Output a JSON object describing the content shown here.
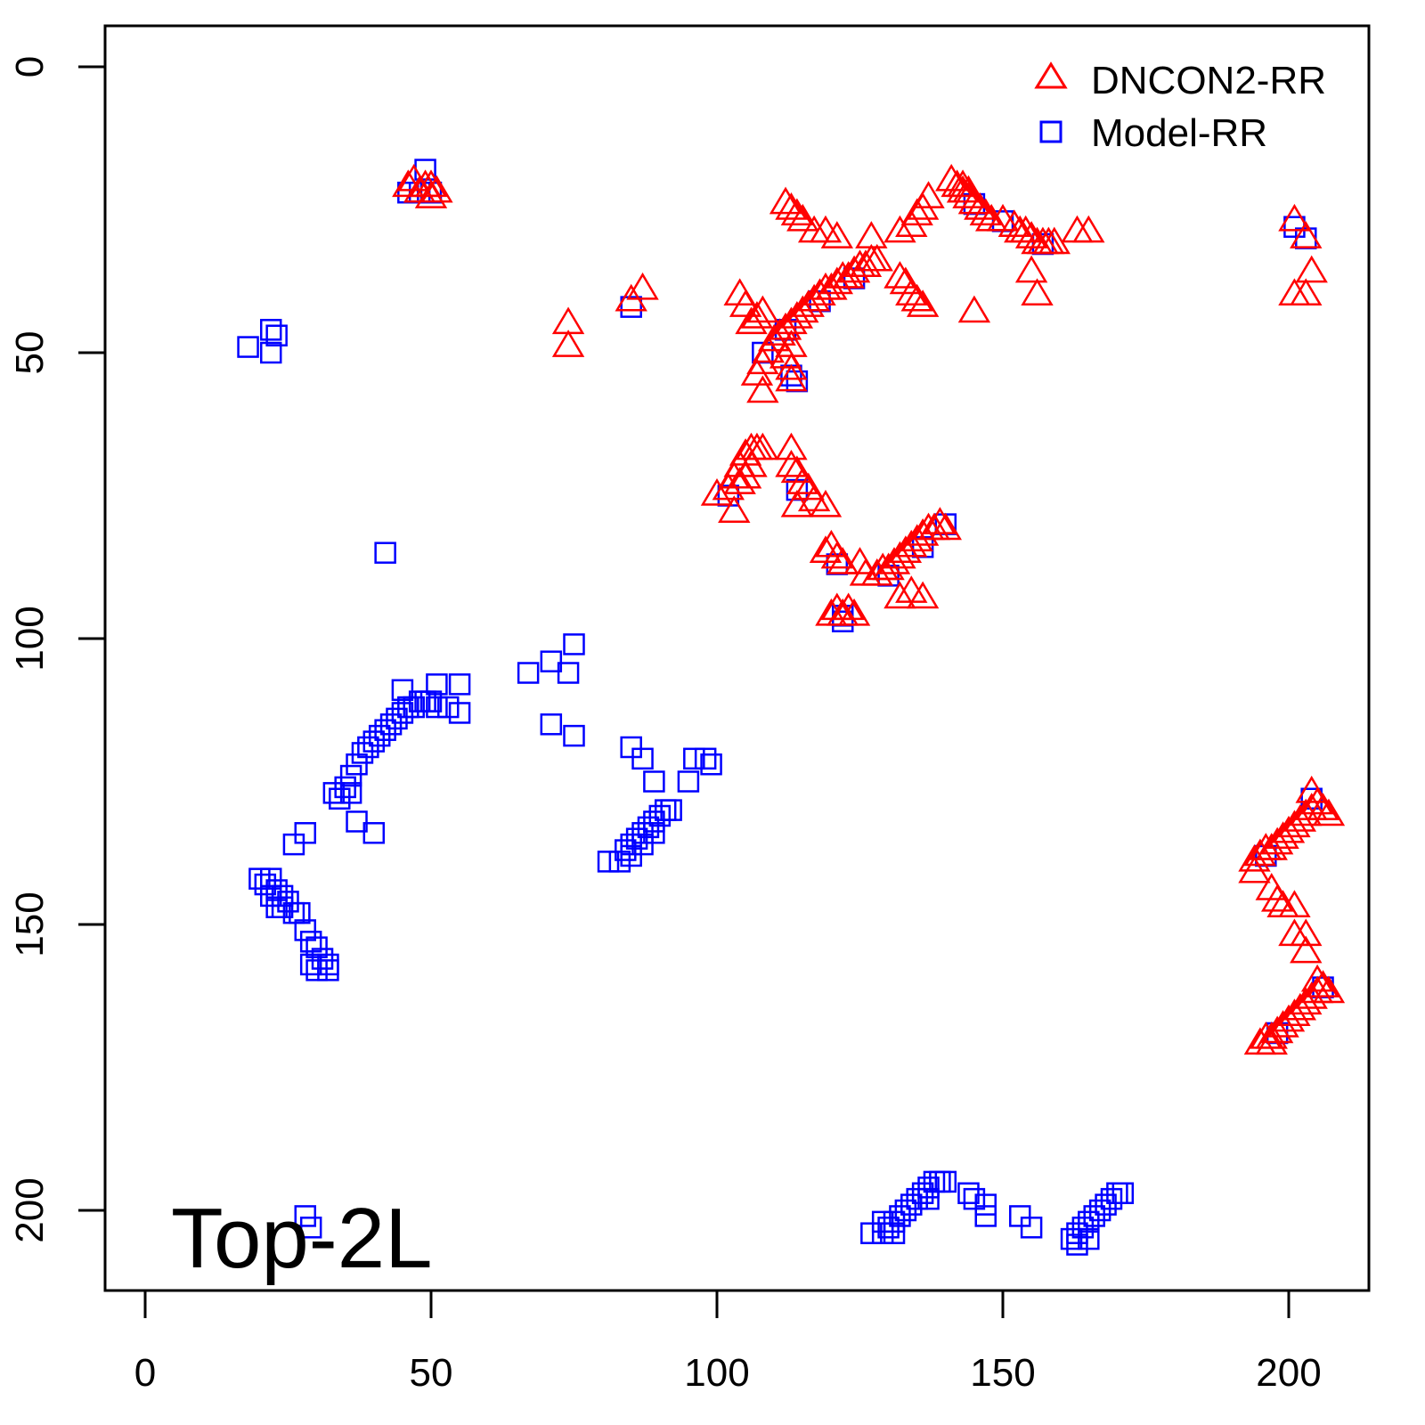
{
  "chart_data": {
    "type": "scatter",
    "title": "",
    "annotation": "Top-2L",
    "xlabel": "",
    "ylabel": "",
    "xlim": [
      -7,
      214
    ],
    "ylim": [
      214,
      -7
    ],
    "y_inverted": true,
    "xticks": [
      0,
      50,
      100,
      150,
      200
    ],
    "yticks": [
      0,
      50,
      100,
      150,
      200
    ],
    "xtick_labels": [
      "0",
      "50",
      "100",
      "150",
      "200"
    ],
    "ytick_labels": [
      "0",
      "50",
      "100",
      "150",
      "200"
    ],
    "grid": false,
    "legend": {
      "placement": "top-right",
      "entries": [
        "DNCON2-RR",
        "Model-RR"
      ]
    },
    "series": [
      {
        "name": "Model-RR",
        "marker": "square",
        "color": "#0000ff",
        "points": [
          [
            18,
            49
          ],
          [
            22,
            46
          ],
          [
            23,
            47
          ],
          [
            22,
            50
          ],
          [
            49,
            18
          ],
          [
            46,
            22
          ],
          [
            48,
            22
          ],
          [
            50,
            22
          ],
          [
            42,
            85
          ],
          [
            85,
            42
          ],
          [
            75,
            101
          ],
          [
            67,
            106
          ],
          [
            71,
            104
          ],
          [
            74,
            106
          ],
          [
            71,
            115
          ],
          [
            75,
            117
          ],
          [
            33,
            127
          ],
          [
            35,
            126
          ],
          [
            36,
            124
          ],
          [
            37,
            122
          ],
          [
            38,
            120
          ],
          [
            39,
            119
          ],
          [
            40,
            118
          ],
          [
            41,
            117
          ],
          [
            42,
            116
          ],
          [
            43,
            115
          ],
          [
            44,
            114
          ],
          [
            45,
            113
          ],
          [
            46,
            112
          ],
          [
            47,
            112
          ],
          [
            48,
            111
          ],
          [
            49,
            111
          ],
          [
            50,
            111
          ],
          [
            51,
            112
          ],
          [
            53,
            112
          ],
          [
            55,
            113
          ],
          [
            45,
            109
          ],
          [
            51,
            108
          ],
          [
            55,
            108
          ],
          [
            37,
            132
          ],
          [
            40,
            134
          ],
          [
            26,
            136
          ],
          [
            28,
            134
          ],
          [
            36,
            127
          ],
          [
            34,
            128
          ],
          [
            20,
            142
          ],
          [
            21,
            143
          ],
          [
            22,
            142
          ],
          [
            23,
            144
          ],
          [
            24,
            145
          ],
          [
            25,
            146
          ],
          [
            26,
            148
          ],
          [
            27,
            148
          ],
          [
            28,
            151
          ],
          [
            29,
            153
          ],
          [
            30,
            154
          ],
          [
            31,
            156
          ],
          [
            32,
            157
          ],
          [
            29,
            157
          ],
          [
            30,
            158
          ],
          [
            32,
            158
          ],
          [
            22,
            145
          ],
          [
            23,
            147
          ],
          [
            24,
            147
          ],
          [
            85,
            119
          ],
          [
            87,
            121
          ],
          [
            89,
            125
          ],
          [
            96,
            121
          ],
          [
            98,
            121
          ],
          [
            99,
            122
          ],
          [
            95,
            125
          ],
          [
            81,
            139
          ],
          [
            83,
            139
          ],
          [
            84,
            137
          ],
          [
            85,
            136
          ],
          [
            86,
            135
          ],
          [
            87,
            134
          ],
          [
            88,
            133
          ],
          [
            89,
            132
          ],
          [
            90,
            131
          ],
          [
            91,
            130
          ],
          [
            92,
            130
          ],
          [
            85,
            138
          ],
          [
            87,
            136
          ],
          [
            89,
            134
          ],
          [
            28,
            201
          ],
          [
            29,
            203
          ],
          [
            127,
            204
          ],
          [
            129,
            204
          ],
          [
            130,
            203
          ],
          [
            131,
            202
          ],
          [
            132,
            201
          ],
          [
            133,
            200
          ],
          [
            134,
            199
          ],
          [
            135,
            198
          ],
          [
            136,
            197
          ],
          [
            137,
            196
          ],
          [
            138,
            195
          ],
          [
            139,
            195
          ],
          [
            140,
            195
          ],
          [
            137,
            198
          ],
          [
            129,
            202
          ],
          [
            131,
            204
          ],
          [
            144,
            197
          ],
          [
            145,
            198
          ],
          [
            147,
            199
          ],
          [
            147,
            201
          ],
          [
            153,
            201
          ],
          [
            155,
            203
          ],
          [
            162,
            205
          ],
          [
            163,
            204
          ],
          [
            164,
            203
          ],
          [
            165,
            202
          ],
          [
            166,
            201
          ],
          [
            167,
            200
          ],
          [
            168,
            199
          ],
          [
            169,
            198
          ],
          [
            170,
            197
          ],
          [
            171,
            197
          ],
          [
            163,
            206
          ],
          [
            165,
            205
          ],
          [
            201,
            28
          ],
          [
            203,
            30
          ],
          [
            122,
            96
          ],
          [
            122,
            97
          ],
          [
            113,
            54
          ],
          [
            114,
            55
          ],
          [
            108,
            50
          ],
          [
            112,
            46
          ],
          [
            118,
            41
          ],
          [
            124,
            37
          ],
          [
            145,
            24
          ],
          [
            150,
            27
          ],
          [
            157,
            31
          ],
          [
            102,
            75
          ],
          [
            114,
            74
          ],
          [
            121,
            87
          ],
          [
            130,
            89
          ],
          [
            136,
            84
          ],
          [
            140,
            80
          ],
          [
            196,
            138
          ],
          [
            204,
            128
          ],
          [
            198,
            169
          ],
          [
            206,
            161
          ]
        ]
      },
      {
        "name": "DNCON2-RR",
        "marker": "triangle",
        "color": "#ff0000",
        "points": [
          [
            46,
            21
          ],
          [
            47,
            20
          ],
          [
            48,
            22
          ],
          [
            49,
            21
          ],
          [
            50,
            21
          ],
          [
            50,
            23
          ],
          [
            51,
            22
          ],
          [
            85,
            41
          ],
          [
            87,
            39
          ],
          [
            74,
            45
          ],
          [
            74,
            49
          ],
          [
            107,
            54
          ],
          [
            108,
            52
          ],
          [
            109,
            50
          ],
          [
            110,
            48
          ],
          [
            111,
            47
          ],
          [
            112,
            46
          ],
          [
            113,
            45
          ],
          [
            114,
            44
          ],
          [
            115,
            43
          ],
          [
            116,
            42
          ],
          [
            117,
            41
          ],
          [
            118,
            40
          ],
          [
            119,
            39
          ],
          [
            120,
            39
          ],
          [
            121,
            38
          ],
          [
            122,
            37
          ],
          [
            123,
            37
          ],
          [
            124,
            36
          ],
          [
            125,
            35
          ],
          [
            126,
            35
          ],
          [
            127,
            34
          ],
          [
            128,
            34
          ],
          [
            127,
            30
          ],
          [
            113,
            49
          ],
          [
            112,
            51
          ],
          [
            113,
            53
          ],
          [
            113,
            55
          ],
          [
            108,
            57
          ],
          [
            104,
            40
          ],
          [
            105,
            42
          ],
          [
            106,
            45
          ],
          [
            107,
            44
          ],
          [
            108,
            43
          ],
          [
            112,
            24
          ],
          [
            113,
            25
          ],
          [
            114,
            26
          ],
          [
            115,
            27
          ],
          [
            117,
            29
          ],
          [
            119,
            29
          ],
          [
            121,
            30
          ],
          [
            132,
            37
          ],
          [
            133,
            38
          ],
          [
            134,
            40
          ],
          [
            135,
            41
          ],
          [
            136,
            42
          ],
          [
            132,
            29
          ],
          [
            134,
            28
          ],
          [
            135,
            26
          ],
          [
            136,
            25
          ],
          [
            137,
            23
          ],
          [
            141,
            20
          ],
          [
            142,
            21
          ],
          [
            143,
            22
          ],
          [
            144,
            23
          ],
          [
            145,
            24
          ],
          [
            146,
            25
          ],
          [
            147,
            26
          ],
          [
            148,
            27
          ],
          [
            150,
            27
          ],
          [
            152,
            28
          ],
          [
            153,
            29
          ],
          [
            154,
            29
          ],
          [
            155,
            30
          ],
          [
            156,
            31
          ],
          [
            157,
            31
          ],
          [
            158,
            31
          ],
          [
            159,
            31
          ],
          [
            163,
            29
          ],
          [
            165,
            29
          ],
          [
            155,
            36
          ],
          [
            156,
            40
          ],
          [
            145,
            43
          ],
          [
            143,
            21
          ],
          [
            144,
            22
          ],
          [
            201,
            40
          ],
          [
            203,
            40
          ],
          [
            204,
            36
          ],
          [
            201,
            27
          ],
          [
            203,
            30
          ],
          [
            100,
            75
          ],
          [
            102,
            74
          ],
          [
            103,
            72
          ],
          [
            104,
            70
          ],
          [
            105,
            68
          ],
          [
            106,
            67
          ],
          [
            107,
            67
          ],
          [
            108,
            67
          ],
          [
            104,
            73
          ],
          [
            105,
            72
          ],
          [
            106,
            70
          ],
          [
            103,
            78
          ],
          [
            113,
            67
          ],
          [
            113,
            70
          ],
          [
            114,
            71
          ],
          [
            115,
            73
          ],
          [
            116,
            74
          ],
          [
            117,
            76
          ],
          [
            114,
            77
          ],
          [
            119,
            77
          ],
          [
            120,
            84
          ],
          [
            121,
            86
          ],
          [
            119,
            85
          ],
          [
            122,
            87
          ],
          [
            125,
            87
          ],
          [
            126,
            89
          ],
          [
            120,
            96
          ],
          [
            121,
            95
          ],
          [
            122,
            96
          ],
          [
            123,
            95
          ],
          [
            124,
            96
          ],
          [
            128,
            89
          ],
          [
            129,
            88
          ],
          [
            130,
            88
          ],
          [
            131,
            87
          ],
          [
            132,
            86
          ],
          [
            133,
            85
          ],
          [
            134,
            84
          ],
          [
            135,
            83
          ],
          [
            136,
            82
          ],
          [
            137,
            81
          ],
          [
            138,
            81
          ],
          [
            139,
            80
          ],
          [
            140,
            81
          ],
          [
            132,
            93
          ],
          [
            134,
            92
          ],
          [
            136,
            93
          ],
          [
            194,
            139
          ],
          [
            195,
            138
          ],
          [
            196,
            137
          ],
          [
            197,
            137
          ],
          [
            198,
            136
          ],
          [
            199,
            135
          ],
          [
            200,
            134
          ],
          [
            201,
            133
          ],
          [
            202,
            132
          ],
          [
            203,
            131
          ],
          [
            204,
            130
          ],
          [
            205,
            129
          ],
          [
            206,
            130
          ],
          [
            207,
            131
          ],
          [
            204,
            127
          ],
          [
            194,
            141
          ],
          [
            197,
            144
          ],
          [
            198,
            146
          ],
          [
            199,
            147
          ],
          [
            201,
            147
          ],
          [
            201,
            152
          ],
          [
            203,
            152
          ],
          [
            203,
            155
          ],
          [
            195,
            171
          ],
          [
            196,
            170
          ],
          [
            197,
            170
          ],
          [
            198,
            169
          ],
          [
            199,
            168
          ],
          [
            200,
            167
          ],
          [
            201,
            166
          ],
          [
            202,
            165
          ],
          [
            203,
            164
          ],
          [
            204,
            163
          ],
          [
            205,
            162
          ],
          [
            206,
            161
          ],
          [
            207,
            162
          ],
          [
            205,
            160
          ],
          [
            197,
            171
          ]
        ]
      }
    ]
  }
}
